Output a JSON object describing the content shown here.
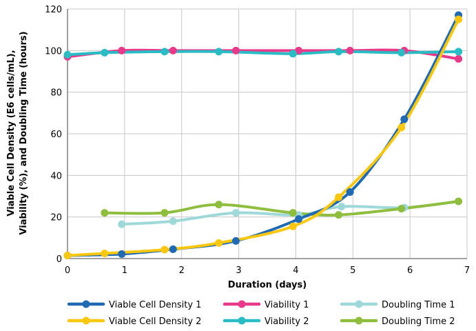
{
  "chart_data": {
    "type": "line",
    "title": "",
    "xlabel": "Duration (days)",
    "ylabel_lines": [
      "Viable Cell Density (E6 cells/mL),",
      "Viability (%), and Doubling Time (hours)"
    ],
    "xlim": [
      0,
      7
    ],
    "ylim": [
      0,
      120
    ],
    "xticks": [
      0,
      1,
      2,
      3,
      4,
      5,
      6,
      7
    ],
    "yticks": [
      0,
      20,
      40,
      60,
      80,
      100,
      120
    ],
    "grid": true,
    "legend_position": "bottom",
    "series": [
      {
        "name": "Viable Cell Density 1",
        "color": "#1f6ab3",
        "points": [
          [
            0,
            1.5
          ],
          [
            0.95,
            2.2
          ],
          [
            1.85,
            4.5
          ],
          [
            2.95,
            8.5
          ],
          [
            4.05,
            19
          ],
          [
            4.95,
            32
          ],
          [
            5.9,
            67
          ],
          [
            6.85,
            117
          ]
        ]
      },
      {
        "name": "Viability 1",
        "color": "#e8398a",
        "points": [
          [
            0,
            97
          ],
          [
            0.95,
            100
          ],
          [
            1.85,
            100
          ],
          [
            2.95,
            100
          ],
          [
            4.05,
            100
          ],
          [
            4.95,
            100
          ],
          [
            5.9,
            100
          ],
          [
            6.85,
            96
          ]
        ]
      },
      {
        "name": "Doubling Time 1",
        "color": "#9ed8d8",
        "points": [
          [
            0.95,
            16.5
          ],
          [
            1.85,
            18
          ],
          [
            2.95,
            22
          ],
          [
            4.05,
            21
          ],
          [
            4.8,
            25
          ],
          [
            5.9,
            24.5
          ],
          [
            6.85,
            27.5
          ]
        ]
      },
      {
        "name": "Viable Cell Density 2",
        "color": "#f9c80e",
        "points": [
          [
            0,
            1.5
          ],
          [
            0.65,
            2.5
          ],
          [
            1.7,
            4.3
          ],
          [
            2.65,
            7.5
          ],
          [
            3.95,
            15.5
          ],
          [
            4.75,
            29.5
          ],
          [
            5.85,
            63
          ],
          [
            6.85,
            115
          ]
        ]
      },
      {
        "name": "Viability 2",
        "color": "#29bcc4",
        "points": [
          [
            0,
            98
          ],
          [
            0.65,
            99
          ],
          [
            1.7,
            99.5
          ],
          [
            2.65,
            99.5
          ],
          [
            3.95,
            98.5
          ],
          [
            4.75,
            99.5
          ],
          [
            5.85,
            99
          ],
          [
            6.85,
            99.5
          ]
        ]
      },
      {
        "name": "Doubling Time 2",
        "color": "#8fbe3f",
        "points": [
          [
            0.65,
            22
          ],
          [
            1.7,
            22
          ],
          [
            2.65,
            26
          ],
          [
            3.95,
            22
          ],
          [
            4.75,
            21
          ],
          [
            5.85,
            24
          ],
          [
            6.85,
            27.5
          ]
        ]
      }
    ]
  }
}
